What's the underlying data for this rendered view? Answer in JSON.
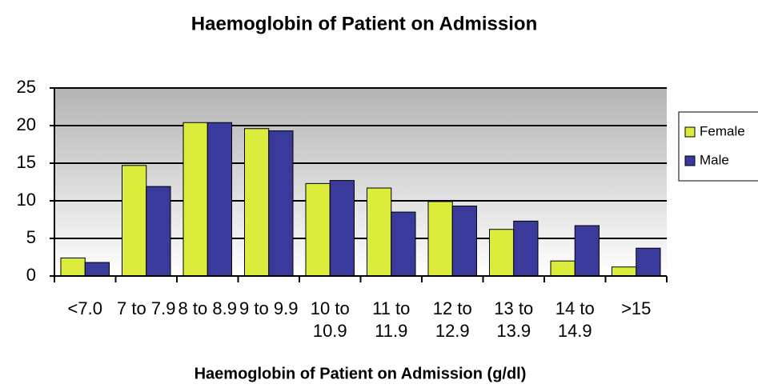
{
  "chart_data": {
    "type": "bar",
    "title": "Haemoglobin of Patient on Admission",
    "x_label": "Haemoglobin of Patient on Admission (g/dl)",
    "categories": [
      "<7.0",
      "7 to 7.9",
      "8 to 8.9",
      "9 to 9.9",
      "10 to 10.9",
      "11 to 11.9",
      "12 to 12.9",
      "13 to 13.9",
      "14 to 14.9",
      ">15"
    ],
    "series": [
      {
        "name": "Female",
        "color": "#dcec3c",
        "values": [
          2.4,
          14.7,
          20.4,
          19.6,
          12.3,
          11.7,
          9.9,
          6.2,
          2.0,
          1.2
        ]
      },
      {
        "name": "Male",
        "color": "#3a3a9c",
        "values": [
          1.8,
          11.9,
          20.4,
          19.3,
          12.7,
          8.5,
          9.3,
          7.3,
          6.7,
          3.7
        ]
      }
    ],
    "ylim": [
      0,
      25
    ],
    "yticks": [
      0,
      5,
      10,
      15,
      20,
      25
    ],
    "grid": true,
    "legend": "right"
  }
}
